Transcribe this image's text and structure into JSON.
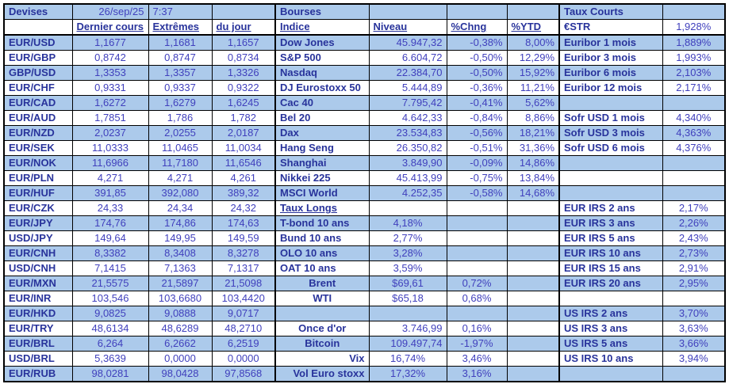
{
  "colors": {
    "stripe_blue": "#accaeb",
    "label_text": "#28339b",
    "value_text": "#4040bd",
    "grid_border": "#000000"
  },
  "header": {
    "devises": "Devises",
    "date": "26/sep/25",
    "time": "7:37",
    "bourses": "Bourses",
    "taux_courts": "Taux Courts"
  },
  "subheader": {
    "dernier_cours": "Dernier cours",
    "extremes": "Extrêmes",
    "du_jour": "du jour",
    "indice": "Indice",
    "niveau": "Niveau",
    "chng": "%Chng",
    "ytd": "%YTD",
    "estr_label": "€STR",
    "estr_value": "1,928%"
  },
  "rows": [
    {
      "pair": "EUR/USD",
      "last": "1,1677",
      "high": "1,1681",
      "low": "1,1657",
      "indice": "Dow Jones",
      "niveau": "45.947,32",
      "chng": "-0,38%",
      "ytd": "8,00%",
      "rate_label": "Euribor 1 mois",
      "rate_value": "1,889%"
    },
    {
      "pair": "EUR/GBP",
      "last": "0,8742",
      "high": "0,8747",
      "low": "0,8734",
      "indice": "S&P 500",
      "niveau": "6.604,72",
      "chng": "-0,50%",
      "ytd": "12,29%",
      "rate_label": "Euribor 3 mois",
      "rate_value": "1,993%"
    },
    {
      "pair": "GBP/USD",
      "last": "1,3353",
      "high": "1,3357",
      "low": "1,3326",
      "indice": "Nasdaq",
      "niveau": "22.384,70",
      "chng": "-0,50%",
      "ytd": "15,92%",
      "rate_label": "Euribor 6 mois",
      "rate_value": "2,103%"
    },
    {
      "pair": "EUR/CHF",
      "last": "0,9331",
      "high": "0,9337",
      "low": "0,9322",
      "indice": "DJ Eurostoxx 50",
      "niveau": "5.444,89",
      "chng": "-0,36%",
      "ytd": "11,21%",
      "rate_label": "Euribor 12 mois",
      "rate_value": "2,171%"
    },
    {
      "pair": "EUR/CAD",
      "last": "1,6272",
      "high": "1,6279",
      "low": "1,6245",
      "indice": "Cac 40",
      "niveau": "7.795,42",
      "chng": "-0,41%",
      "ytd": "5,62%",
      "rate_label": "",
      "rate_value": ""
    },
    {
      "pair": "EUR/AUD",
      "last": "1,7851",
      "high": "1,786",
      "low": "1,782",
      "indice": "Bel 20",
      "niveau": "4.642,33",
      "chng": "-0,84%",
      "ytd": "8,86%",
      "rate_label": "Sofr USD 1 mois",
      "rate_value": "4,340%"
    },
    {
      "pair": "EUR/NZD",
      "last": "2,0237",
      "high": "2,0255",
      "low": "2,0187",
      "indice": "Dax",
      "niveau": "23.534,83",
      "chng": "-0,56%",
      "ytd": "18,21%",
      "rate_label": "Sofr USD 3 mois",
      "rate_value": "4,363%"
    },
    {
      "pair": "EUR/SEK",
      "last": "11,0333",
      "high": "11,0465",
      "low": "11,0034",
      "indice": "Hang Seng",
      "niveau": "26.350,82",
      "chng": "-0,51%",
      "ytd": "31,36%",
      "rate_label": "Sofr USD 6 mois",
      "rate_value": "4,376%"
    },
    {
      "pair": "EUR/NOK",
      "last": "11,6966",
      "high": "11,7180",
      "low": "11,6546",
      "indice": "Shanghai",
      "niveau": "3.849,90",
      "chng": "-0,09%",
      "ytd": "14,86%",
      "rate_label": "",
      "rate_value": ""
    },
    {
      "pair": "EUR/PLN",
      "last": "4,271",
      "high": "4,271",
      "low": "4,261",
      "indice": "Nikkei 225",
      "niveau": "45.413,99",
      "chng": "-0,75%",
      "ytd": "13,84%",
      "rate_label": "",
      "rate_value": ""
    },
    {
      "pair": "EUR/HUF",
      "last": "391,85",
      "high": "392,080",
      "low": "389,32",
      "indice": "MSCI World",
      "niveau": "4.252,35",
      "chng": "-0,58%",
      "ytd": "14,68%",
      "rate_label": "",
      "rate_value": ""
    },
    {
      "pair": "EUR/CZK",
      "last": "24,33",
      "high": "24,34",
      "low": "24,32",
      "indice": "Taux Longs",
      "niveau": "",
      "chng": "",
      "ytd": "",
      "rate_label": "EUR IRS 2 ans",
      "rate_value": "2,17%",
      "underline": [
        "indice"
      ]
    },
    {
      "pair": "EUR/JPY",
      "last": "174,76",
      "high": "174,86",
      "low": "174,63",
      "indice": "T-bond 10 ans",
      "niveau": "4,18%",
      "chng": "",
      "ytd": "",
      "rate_label": "EUR IRS 3 ans",
      "rate_value": "2,26%",
      "overrides": {
        "niveau": "ta-c"
      }
    },
    {
      "pair": "USD/JPY",
      "last": "149,64",
      "high": "149,95",
      "low": "149,59",
      "indice": "Bund 10 ans",
      "niveau": "2,77%",
      "chng": "",
      "ytd": "",
      "rate_label": "EUR IRS 5 ans",
      "rate_value": "2,43%",
      "overrides": {
        "niveau": "ta-c"
      }
    },
    {
      "pair": "EUR/CNH",
      "last": "8,3382",
      "high": "8,3408",
      "low": "8,3278",
      "indice": "OLO 10 ans",
      "niveau": "3,28%",
      "chng": "",
      "ytd": "",
      "rate_label": "EUR IRS 10 ans",
      "rate_value": "2,73%",
      "overrides": {
        "niveau": "ta-c"
      }
    },
    {
      "pair": "USD/CNH",
      "last": "7,1415",
      "high": "7,1363",
      "low": "7,1317",
      "indice": "OAT 10 ans",
      "niveau": "3,59%",
      "chng": "",
      "ytd": "",
      "rate_label": "EUR IRS 15 ans",
      "rate_value": "2,91%",
      "overrides": {
        "niveau": "ta-c"
      }
    },
    {
      "pair": "EUR/MXN",
      "last": "21,5575",
      "high": "21,5897",
      "low": "21,5098",
      "indice": "Brent",
      "niveau": "$69,61",
      "chng": "0,72%",
      "ytd": "",
      "rate_label": "EUR IRS 20 ans",
      "rate_value": "2,95%",
      "overrides": {
        "indice": "ta-c",
        "niveau": "ta-c",
        "chng": "ta-c"
      }
    },
    {
      "pair": "EUR/INR",
      "last": "103,546",
      "high": "103,6680",
      "low": "103,4420",
      "indice": "WTI",
      "niveau": "$65,18",
      "chng": "0,68%",
      "ytd": "",
      "rate_label": "",
      "rate_value": "",
      "overrides": {
        "indice": "ta-c",
        "niveau": "ta-c",
        "chng": "ta-c"
      }
    },
    {
      "pair": "EUR/HKD",
      "last": "9,0825",
      "high": "9,0888",
      "low": "9,0717",
      "indice": "",
      "niveau": "",
      "chng": "",
      "ytd": "",
      "rate_label": "US IRS 2 ans",
      "rate_value": "3,70%"
    },
    {
      "pair": "EUR/TRY",
      "last": "48,6134",
      "high": "48,6289",
      "low": "48,2710",
      "indice": "Once d'or",
      "niveau": "3.746,99",
      "chng": "0,16%",
      "ytd": "",
      "rate_label": "US IRS 3 ans",
      "rate_value": "3,63%",
      "overrides": {
        "indice": "ta-c",
        "chng": "ta-c"
      }
    },
    {
      "pair": "EUR/BRL",
      "last": "6,264",
      "high": "6,2662",
      "low": "6,2519",
      "indice": "Bitcoin",
      "niveau": "109.497,74",
      "chng": "-1,97%",
      "ytd": "",
      "rate_label": "US IRS 5 ans",
      "rate_value": "3,66%",
      "overrides": {
        "indice": "ta-c",
        "chng": "ta-c"
      }
    },
    {
      "pair": "USD/BRL",
      "last": "5,3639",
      "high": "0,0000",
      "low": "0,0000",
      "indice": "Vix",
      "niveau": "16,74%",
      "chng": "3,46%",
      "ytd": "",
      "rate_label": "US IRS 10 ans",
      "rate_value": "3,94%",
      "overrides": {
        "indice": "ta-r",
        "niveau": "ta-c",
        "chng": "ta-c"
      }
    },
    {
      "pair": "EUR/RUB",
      "last": "98,0281",
      "high": "98,0428",
      "low": "97,8568",
      "indice": "Vol Euro stoxx",
      "niveau": "17,32%",
      "chng": "3,16%",
      "ytd": "",
      "rate_label": "",
      "rate_value": "",
      "overrides": {
        "indice": "ta-r",
        "niveau": "ta-c",
        "chng": "ta-c"
      }
    }
  ]
}
